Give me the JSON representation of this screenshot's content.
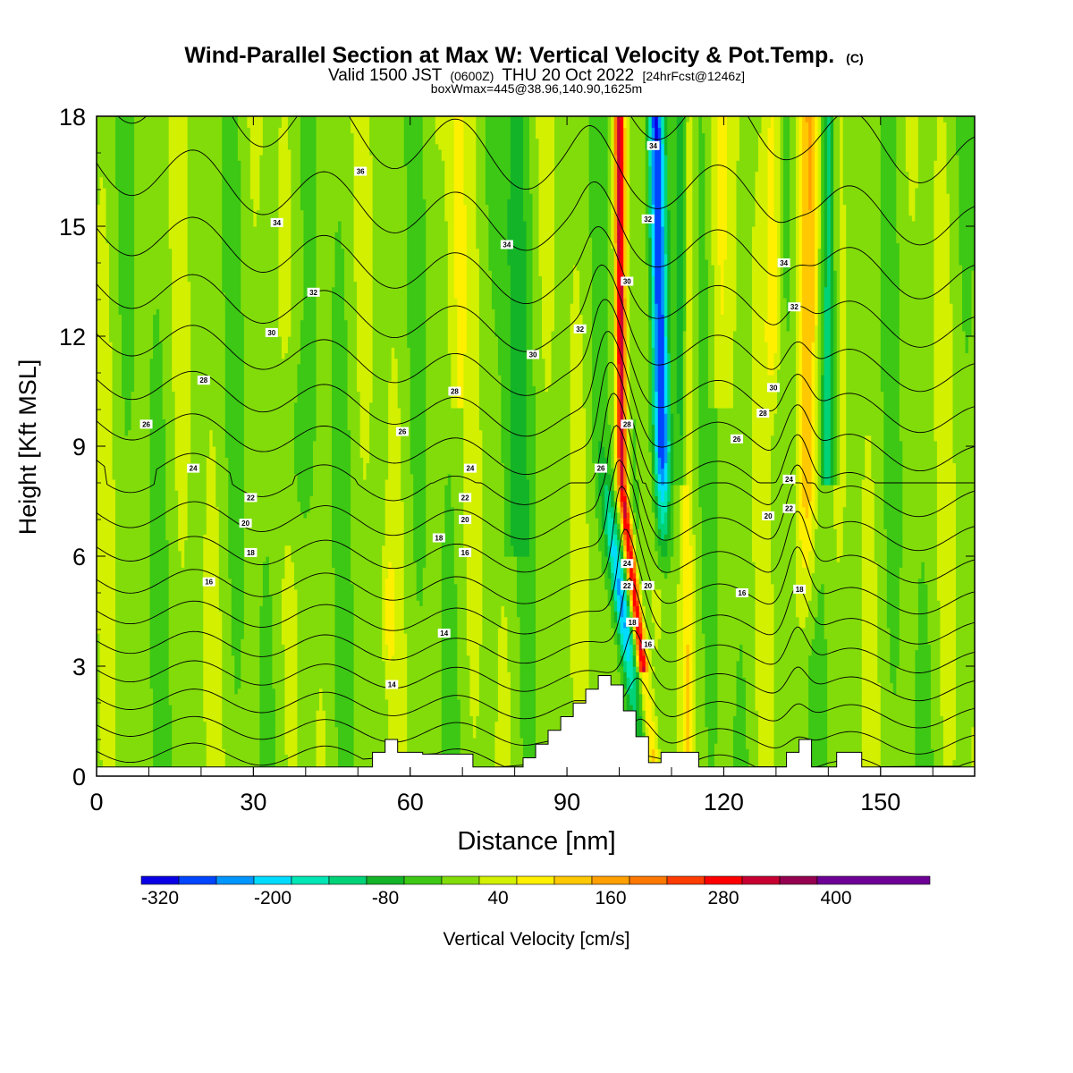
{
  "title": {
    "main": "Wind-Parallel Section at Max W: Vertical Velocity & Pot.Temp.",
    "main_unit": "(C)",
    "valid_prefix": "Valid 1500 JST",
    "valid_utc": "(0600Z)",
    "valid_date": "THU 20 Oct 2022",
    "forecast": "[24hrFcst@1246z]",
    "box_info": "boxWmax=445@38.96,140.90,1625m"
  },
  "chart_data": {
    "type": "heatmap",
    "xlabel": "Distance [nm]",
    "ylabel": "Height [Kft MSL]",
    "xlim": [
      0,
      168
    ],
    "ylim": [
      0,
      18
    ],
    "x_ticks": [
      0,
      30,
      60,
      90,
      120,
      150
    ],
    "y_ticks": [
      0,
      3,
      6,
      9,
      12,
      15,
      18
    ],
    "x_tick_labels": [
      "0",
      "30",
      "60",
      "90",
      "120",
      "150"
    ],
    "y_tick_labels": [
      "0",
      "3",
      "6",
      "9",
      "12",
      "15",
      "18"
    ],
    "colorbar": {
      "label": "Vertical Velocity [cm/s]",
      "tick_labels": [
        "-320",
        "-200",
        "-80",
        "40",
        "160",
        "280",
        "400"
      ],
      "tick_values": [
        -320,
        -200,
        -80,
        40,
        160,
        280,
        400
      ],
      "range": [
        -340,
        500
      ],
      "step": 40,
      "colors": [
        "#0a00e6",
        "#0046ff",
        "#0096ff",
        "#00dcff",
        "#00e6b4",
        "#00d278",
        "#14b428",
        "#3cc814",
        "#82dc0a",
        "#d2f000",
        "#fff000",
        "#ffc800",
        "#ffa000",
        "#ff7800",
        "#ff3c00",
        "#ff0000",
        "#c80032",
        "#960050",
        "#6e0096"
      ]
    },
    "contour_labels": [
      {
        "text": "36",
        "x": 50.5,
        "y": 16.5
      },
      {
        "text": "34",
        "x": 34.5,
        "y": 15.1
      },
      {
        "text": "34",
        "x": 78.5,
        "y": 14.5
      },
      {
        "text": "34",
        "x": 106.5,
        "y": 17.2
      },
      {
        "text": "32",
        "x": 105.5,
        "y": 15.2
      },
      {
        "text": "32",
        "x": 41.5,
        "y": 13.2
      },
      {
        "text": "32",
        "x": 92.5,
        "y": 12.2
      },
      {
        "text": "30",
        "x": 101.5,
        "y": 13.5
      },
      {
        "text": "30",
        "x": 33.5,
        "y": 12.1
      },
      {
        "text": "30",
        "x": 83.5,
        "y": 11.5
      },
      {
        "text": "34",
        "x": 131.5,
        "y": 14.0
      },
      {
        "text": "32",
        "x": 133.5,
        "y": 12.8
      },
      {
        "text": "30",
        "x": 129.5,
        "y": 10.6
      },
      {
        "text": "28",
        "x": 20.5,
        "y": 10.8
      },
      {
        "text": "28",
        "x": 68.5,
        "y": 10.5
      },
      {
        "text": "28",
        "x": 101.5,
        "y": 9.6
      },
      {
        "text": "28",
        "x": 127.5,
        "y": 9.9
      },
      {
        "text": "26",
        "x": 9.5,
        "y": 9.6
      },
      {
        "text": "26",
        "x": 58.5,
        "y": 9.4
      },
      {
        "text": "26",
        "x": 96.5,
        "y": 8.4
      },
      {
        "text": "26",
        "x": 122.5,
        "y": 9.2
      },
      {
        "text": "24",
        "x": 18.5,
        "y": 8.4
      },
      {
        "text": "24",
        "x": 71.5,
        "y": 8.4
      },
      {
        "text": "24",
        "x": 132.5,
        "y": 8.1
      },
      {
        "text": "22",
        "x": 29.5,
        "y": 7.6
      },
      {
        "text": "22",
        "x": 70.5,
        "y": 7.6
      },
      {
        "text": "22",
        "x": 132.5,
        "y": 7.3
      },
      {
        "text": "20",
        "x": 28.5,
        "y": 6.9
      },
      {
        "text": "20",
        "x": 70.5,
        "y": 7.0
      },
      {
        "text": "20",
        "x": 128.5,
        "y": 7.1
      },
      {
        "text": "18",
        "x": 29.5,
        "y": 6.1
      },
      {
        "text": "18",
        "x": 65.5,
        "y": 6.5
      },
      {
        "text": "16",
        "x": 70.5,
        "y": 6.1
      },
      {
        "text": "16",
        "x": 21.5,
        "y": 5.3
      },
      {
        "text": "24",
        "x": 101.5,
        "y": 5.8
      },
      {
        "text": "22",
        "x": 101.5,
        "y": 5.2
      },
      {
        "text": "20",
        "x": 105.5,
        "y": 5.2
      },
      {
        "text": "18",
        "x": 102.5,
        "y": 4.2
      },
      {
        "text": "16",
        "x": 105.5,
        "y": 3.6
      },
      {
        "text": "16",
        "x": 123.5,
        "y": 5.0
      },
      {
        "text": "18",
        "x": 134.5,
        "y": 5.1
      },
      {
        "text": "14",
        "x": 66.5,
        "y": 3.9
      },
      {
        "text": "14",
        "x": 56.5,
        "y": 2.5
      }
    ]
  }
}
